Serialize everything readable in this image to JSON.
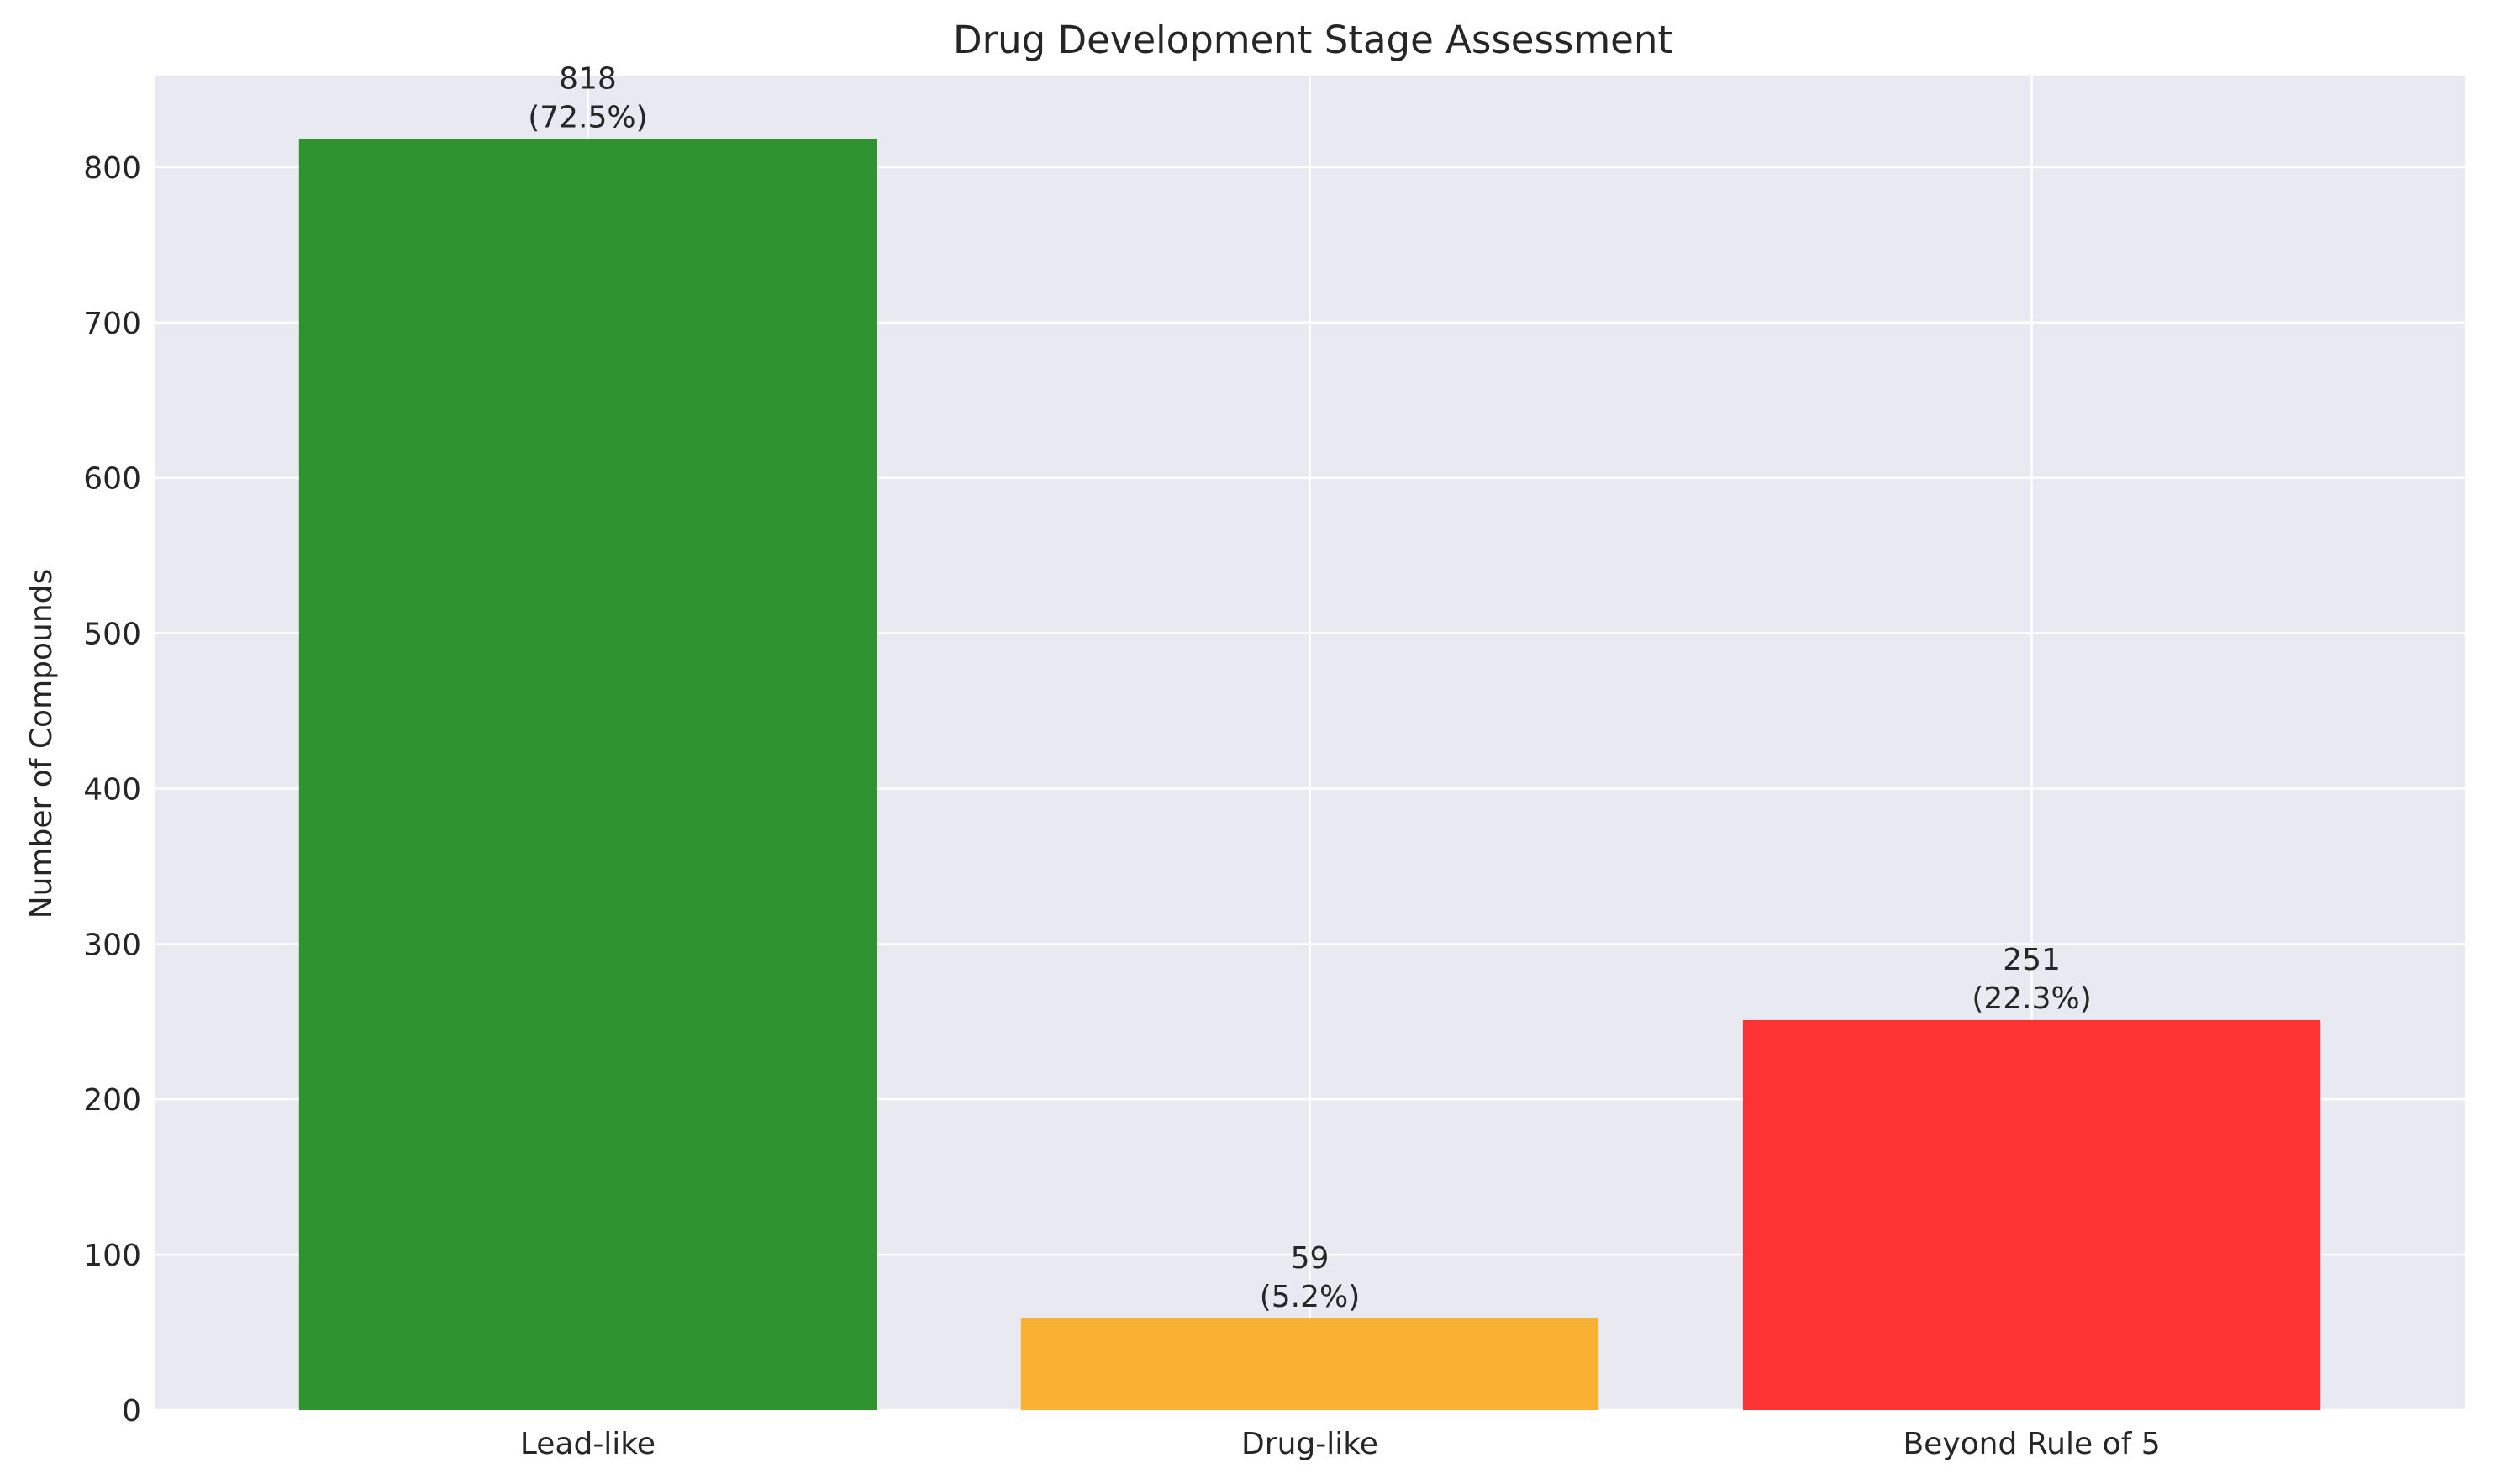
{
  "chart_data": {
    "type": "bar",
    "title": "Drug Development Stage Assessment",
    "xlabel": "",
    "ylabel": "Number of Compounds",
    "categories": [
      "Lead-like",
      "Drug-like",
      "Beyond Rule of 5"
    ],
    "values": [
      818,
      59,
      251
    ],
    "value_labels": [
      "818",
      "59",
      "251"
    ],
    "percent_labels": [
      "(72.5%)",
      "(5.2%)",
      "(22.3%)"
    ],
    "colors": [
      "#2f942f",
      "#f8b133",
      "#fd3233"
    ],
    "ylim": [
      0,
      858.9
    ],
    "yticks": [
      0,
      100,
      200,
      300,
      400,
      500,
      600,
      700,
      800
    ],
    "grid": true,
    "background": "#e9e9f1",
    "grid_color": "#ffffff"
  }
}
